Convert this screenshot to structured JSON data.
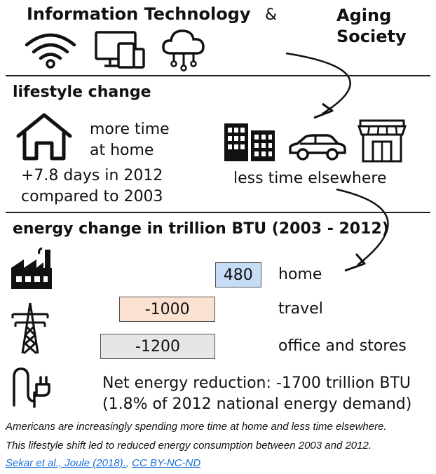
{
  "header": {
    "it_title": "Information Technology",
    "ampersand": "&",
    "aging_line1": "Aging",
    "aging_line2": "Society"
  },
  "lifestyle": {
    "heading": "lifestyle change",
    "home_line1": "more time",
    "home_line2": "at home",
    "days_line1": "+7.8 days in 2012",
    "days_line2": "compared to 2003",
    "elsewhere": "less time elsewhere"
  },
  "energy": {
    "heading": "energy change in trillion BTU (2003 - 2012)",
    "net_line1": "Net energy reduction: -1700 trillion BTU",
    "net_line2": "(1.8% of 2012 national energy demand)"
  },
  "chart_data": {
    "type": "bar",
    "orientation": "horizontal",
    "categories": [
      "home",
      "travel",
      "office and stores"
    ],
    "values": [
      480,
      -1000,
      -1200
    ],
    "colors": [
      "#c6dcf7",
      "#fbe1d0",
      "#e6e6e6"
    ]
  },
  "caption": {
    "line1": "Americans are increasingly spending more time at home and less time elsewhere.",
    "line2": "This lifestyle shift led to reduced energy consumption between 2003 and 2012.",
    "link1": "Sekar et al., Joule (2018).",
    "separator": ", ",
    "link2": "CC BY-NC-ND"
  },
  "icons": [
    "wifi-icon",
    "devices-icon",
    "cloud-icon",
    "house-icon",
    "buildings-icon",
    "car-icon",
    "store-icon",
    "factory-icon",
    "power-tower-icon",
    "plug-icon"
  ]
}
